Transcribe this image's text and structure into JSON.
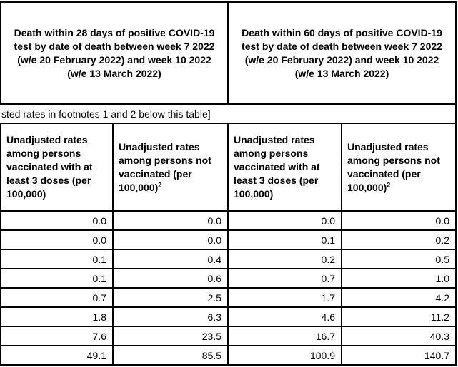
{
  "table": {
    "death_28_header": "Death within 28 days of positive COVID-19 test by date of death between week 7 2022 (w/e 20 February 2022) and week 10 2022 (w/e 13 March 2022)",
    "death_60_header": "Death within 60 days of positive COVID-19 test by date of death between week 7 2022 (w/e 20 February 2022) and week 10 2022 (w/e 13 March 2022)",
    "note_text": "sted rates in footnotes 1 and 2 below this table]",
    "columns": [
      {
        "label": "Unadjusted rates among persons vaccinated with at least 3 doses (per 100,000)",
        "sup": ""
      },
      {
        "label": "Unadjusted rates among persons not vaccinated (per 100,000)",
        "sup": "2"
      },
      {
        "label": "Unadjusted rates among persons vaccinated with at least 3 doses (per 100,000)",
        "sup": ""
      },
      {
        "label": "Unadjusted rates among persons not vaccinated (per 100,000)",
        "sup": "2"
      }
    ],
    "rows": [
      [
        "0.0",
        "0.0",
        "0.0",
        "0.0"
      ],
      [
        "0.0",
        "0.0",
        "0.1",
        "0.2"
      ],
      [
        "0.1",
        "0.4",
        "0.2",
        "0.5"
      ],
      [
        "0.1",
        "0.6",
        "0.7",
        "1.0"
      ],
      [
        "0.7",
        "2.5",
        "1.7",
        "4.2"
      ],
      [
        "1.8",
        "6.3",
        "4.6",
        "11.2"
      ],
      [
        "7.6",
        "23.5",
        "16.7",
        "40.3"
      ],
      [
        "49.1",
        "85.5",
        "100.9",
        "140.7"
      ]
    ],
    "colors": {
      "border": "#000000",
      "background": "#ffffff",
      "text": "#000000"
    }
  }
}
